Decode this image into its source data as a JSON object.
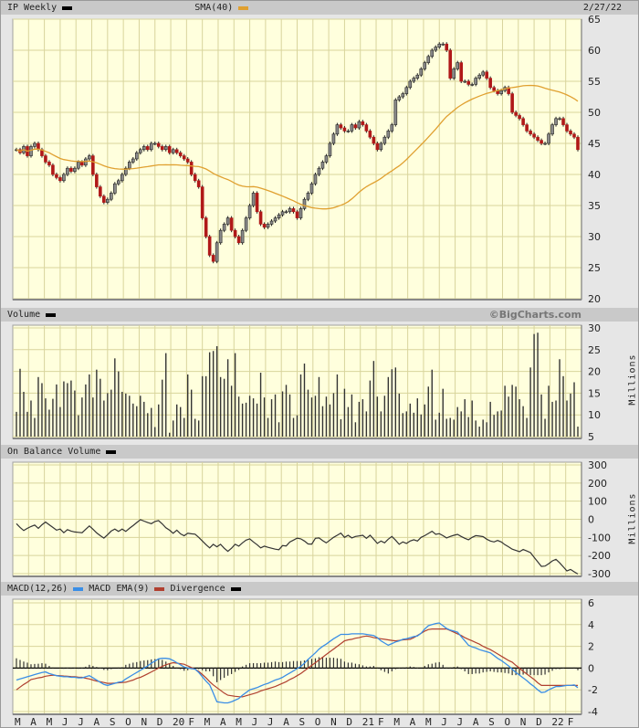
{
  "header": {
    "symbol_label": "IP Weekly",
    "sma_label": "SMA(40)",
    "date": "2/27/22",
    "symbol_color": "#000000",
    "sma_color": "#e0a030"
  },
  "volume_header": {
    "label": "Volume",
    "copyright": "©BigCharts.com",
    "units": "Millions"
  },
  "obv_header": {
    "label": "On Balance Volume",
    "units": "Millions"
  },
  "macd_header": {
    "macd_label": "MACD(12,26)",
    "ema_label": "MACD EMA(9)",
    "div_label": "Divergence",
    "macd_color": "#3a8ee6",
    "ema_color": "#b04030",
    "div_color": "#000000"
  },
  "chart_data": [
    {
      "type": "candlestick",
      "title": "IP Weekly",
      "x_tick_labels": [
        "M",
        "A",
        "M",
        "J",
        "J",
        "A",
        "S",
        "O",
        "N",
        "D",
        "20",
        "F",
        "M",
        "A",
        "M",
        "J",
        "J",
        "A",
        "S",
        "O",
        "N",
        "D",
        "21",
        "F",
        "M",
        "A",
        "M",
        "J",
        "J",
        "A",
        "S",
        "O",
        "N",
        "D",
        "22",
        "F"
      ],
      "y_ticks": [
        "65",
        "60",
        "55",
        "50",
        "45",
        "40",
        "35",
        "30",
        "25",
        "20"
      ],
      "ylim": [
        20,
        65
      ],
      "grid": true,
      "up_color": "#8a8a8a",
      "down_color": "#b01818",
      "sma_period": 40,
      "closes": [
        44,
        43.5,
        44.5,
        43,
        44.5,
        45,
        44,
        43,
        42,
        41.5,
        40,
        39.5,
        39,
        40,
        41,
        40.5,
        41,
        42,
        41.5,
        42.5,
        43,
        40,
        38,
        36.5,
        35.5,
        36,
        37,
        38.5,
        39,
        40,
        41,
        42,
        42.5,
        43.5,
        44,
        44.5,
        44,
        45,
        45,
        44.5,
        44,
        44.5,
        43.5,
        44,
        43.5,
        43,
        42.5,
        42,
        40,
        39,
        38,
        33,
        30,
        27,
        26,
        29,
        31,
        32,
        33,
        31,
        30,
        29,
        31,
        33,
        35,
        37,
        34,
        32,
        31.5,
        32,
        32.5,
        33,
        33.5,
        34,
        34,
        34.5,
        34,
        33,
        34.5,
        36,
        37,
        38.5,
        40,
        41,
        42,
        43,
        45,
        46.5,
        48,
        47.5,
        47,
        47,
        48,
        47.5,
        48.5,
        48,
        47,
        46,
        45,
        44,
        45,
        46,
        47,
        48,
        52,
        52.5,
        53,
        54,
        55,
        55.5,
        56,
        57,
        58,
        59,
        60,
        60.5,
        61,
        61,
        60,
        55.5,
        57,
        58,
        55,
        55,
        54.5,
        54.5,
        55.5,
        56,
        56.5,
        55.5,
        54,
        53.5,
        53,
        53.5,
        54,
        53,
        50,
        49.5,
        49,
        48,
        47,
        46.5,
        46,
        45.5,
        45,
        45,
        46.5,
        48,
        49,
        49,
        48,
        47,
        46.5,
        46,
        44
      ]
    },
    {
      "type": "bar",
      "title": "Volume",
      "units": "Millions",
      "y_ticks": [
        "30",
        "25",
        "20",
        "15",
        "10",
        "5"
      ],
      "ylim": [
        5,
        30
      ],
      "values": [
        10.7,
        20.6,
        15.3,
        10.7,
        13.3,
        9.3,
        18.7,
        17.3,
        13.8,
        11.2,
        13.7,
        17,
        11.8,
        17.7,
        17.3,
        17.9,
        15.6,
        9.9,
        14,
        17,
        19.3,
        14,
        20.4,
        18.3,
        13.3,
        15,
        15.8,
        23,
        20,
        15.3,
        14.9,
        14.4,
        12.6,
        12,
        14.4,
        13,
        10.4,
        11.6,
        7.2,
        12.4,
        18.1,
        24.2,
        5.9,
        8.7,
        12.4,
        11.8,
        9.3,
        19.3,
        15.8,
        9.1,
        8.7,
        18.9,
        18.9,
        24.4,
        24.7,
        25.8,
        18.7,
        18.3,
        22.8,
        16.7,
        24.2,
        14.2,
        12.6,
        12.8,
        14.4,
        13.8,
        12.6,
        19.7,
        14,
        9.3,
        13.6,
        14.7,
        8.3,
        15.4,
        16.9,
        14.7,
        9.3,
        9.9,
        19.3,
        21.8,
        15.8,
        14,
        14.4,
        18.7,
        12,
        14.2,
        12.4,
        15,
        19.3,
        9,
        16,
        11.8,
        14.7,
        8.3,
        13,
        13.6,
        10.8,
        17.9,
        22.4,
        14.2,
        10.8,
        14.4,
        18.7,
        20.5,
        20.9,
        14.9,
        10.4,
        10.8,
        12.6,
        10.5,
        13.8,
        10.1,
        12.4,
        16.5,
        20.4,
        8.9,
        10.5,
        16,
        9.1,
        9.3,
        8.9,
        11.8,
        10.8,
        13.6,
        9.5,
        13.3,
        8.7,
        7.3,
        8.9,
        8.3,
        13,
        10,
        10.8,
        11,
        16.7,
        14.2,
        16.9,
        16.5,
        13.6,
        12,
        9.3,
        20.9,
        28.6,
        28.9,
        14.7,
        9.1,
        16.7,
        13,
        13.3,
        22.8,
        18.9,
        13.3,
        14.9,
        17.5,
        7.3
      ]
    },
    {
      "type": "line",
      "title": "On Balance Volume",
      "units": "Millions",
      "y_ticks": [
        "300",
        "200",
        "100",
        "0",
        "-100",
        "-200",
        "-300"
      ],
      "ylim": [
        -300,
        300
      ],
      "values": [
        -24,
        -45,
        -62,
        -50,
        -40,
        -32,
        -50,
        -30,
        -15,
        -30,
        -45,
        -60,
        -54,
        -74,
        -57,
        -65,
        -70,
        -72,
        -74,
        -55,
        -37,
        -55,
        -75,
        -90,
        -104,
        -85,
        -65,
        -54,
        -67,
        -54,
        -67,
        -50,
        -35,
        -18,
        -2,
        -10,
        -18,
        -24,
        -12,
        -7,
        -25,
        -47,
        -60,
        -77,
        -60,
        -80,
        -91,
        -77,
        -80,
        -82,
        -100,
        -120,
        -140,
        -158,
        -138,
        -152,
        -138,
        -160,
        -177,
        -160,
        -138,
        -148,
        -130,
        -115,
        -108,
        -125,
        -140,
        -158,
        -148,
        -155,
        -160,
        -165,
        -168,
        -145,
        -147,
        -125,
        -115,
        -104,
        -108,
        -120,
        -136,
        -137,
        -105,
        -103,
        -118,
        -130,
        -115,
        -100,
        -88,
        -76,
        -100,
        -88,
        -103,
        -95,
        -92,
        -88,
        -105,
        -88,
        -110,
        -133,
        -120,
        -130,
        -110,
        -95,
        -115,
        -138,
        -125,
        -133,
        -120,
        -113,
        -120,
        -100,
        -90,
        -78,
        -66,
        -83,
        -79,
        -90,
        -103,
        -95,
        -88,
        -83,
        -95,
        -105,
        -113,
        -100,
        -90,
        -93,
        -96,
        -110,
        -120,
        -125,
        -117,
        -125,
        -140,
        -152,
        -165,
        -172,
        -179,
        -167,
        -175,
        -184,
        -210,
        -235,
        -260,
        -258,
        -245,
        -230,
        -221,
        -240,
        -262,
        -285,
        -277,
        -290,
        -302
      ]
    },
    {
      "type": "line",
      "title": "MACD(12,26)",
      "y_ticks": [
        "6",
        "4",
        "2",
        "0",
        "-2",
        "-4"
      ],
      "ylim": [
        -4,
        6
      ],
      "series": [
        {
          "name": "MACD(12,26)",
          "values": [
            -1.1,
            -1.0,
            -0.9,
            -0.8,
            -0.7,
            -0.6,
            -0.5,
            -0.4,
            -0.35,
            -0.5,
            -0.6,
            -0.7,
            -0.75,
            -0.8,
            -0.8,
            -0.85,
            -0.85,
            -0.9,
            -0.9,
            -0.8,
            -0.7,
            -0.9,
            -1.1,
            -1.3,
            -1.5,
            -1.6,
            -1.5,
            -1.4,
            -1.3,
            -1.25,
            -1.0,
            -0.8,
            -0.6,
            -0.4,
            -0.2,
            0.0,
            0.2,
            0.45,
            0.65,
            0.85,
            0.9,
            0.9,
            0.85,
            0.7,
            0.5,
            0.3,
            0.1,
            0.0,
            -0.05,
            -0.1,
            -0.4,
            -0.8,
            -1.2,
            -1.55,
            -2.3,
            -3.1,
            -3.15,
            -3.2,
            -3.2,
            -3.1,
            -2.95,
            -2.8,
            -2.5,
            -2.25,
            -2.0,
            -1.9,
            -1.8,
            -1.65,
            -1.5,
            -1.4,
            -1.25,
            -1.1,
            -1.0,
            -0.85,
            -0.65,
            -0.45,
            -0.25,
            -0.05,
            0.15,
            0.45,
            0.8,
            1.1,
            1.4,
            1.75,
            2.0,
            2.2,
            2.45,
            2.7,
            2.9,
            3.1,
            3.1,
            3.1,
            3.15,
            3.15,
            3.15,
            3.15,
            3.1,
            3.05,
            3.0,
            2.8,
            2.5,
            2.3,
            2.1,
            2.25,
            2.4,
            2.5,
            2.65,
            2.7,
            2.8,
            2.9,
            2.95,
            3.2,
            3.6,
            3.9,
            4.0,
            4.1,
            4.15,
            3.9,
            3.65,
            3.5,
            3.4,
            3.3,
            2.9,
            2.5,
            2.1,
            1.95,
            1.85,
            1.7,
            1.6,
            1.5,
            1.4,
            1.15,
            0.9,
            0.7,
            0.45,
            0.2,
            -0.1,
            -0.4,
            -0.65,
            -0.9,
            -1.15,
            -1.45,
            -1.7,
            -2.0,
            -2.25,
            -2.2,
            -2.0,
            -1.85,
            -1.7,
            -1.7,
            -1.65,
            -1.6,
            -1.6,
            -1.55,
            -1.8
          ]
        },
        {
          "name": "MACD EMA(9)",
          "values": [
            -2.0,
            -1.75,
            -1.5,
            -1.3,
            -1.05,
            -0.98,
            -0.9,
            -0.85,
            -0.75,
            -0.7,
            -0.65,
            -0.68,
            -0.7,
            -0.73,
            -0.75,
            -0.78,
            -0.8,
            -0.83,
            -0.85,
            -0.93,
            -1.0,
            -1.1,
            -1.2,
            -1.25,
            -1.33,
            -1.4,
            -1.4,
            -1.38,
            -1.35,
            -1.33,
            -1.3,
            -1.2,
            -1.1,
            -0.95,
            -0.85,
            -0.7,
            -0.53,
            -0.35,
            -0.18,
            0.0,
            0.15,
            0.3,
            0.4,
            0.5,
            0.45,
            0.4,
            0.35,
            0.2,
            0.05,
            -0.1,
            -0.3,
            -0.6,
            -0.9,
            -1.25,
            -1.55,
            -1.8,
            -2.05,
            -2.3,
            -2.5,
            -2.55,
            -2.6,
            -2.63,
            -2.65,
            -2.55,
            -2.45,
            -2.35,
            -2.25,
            -2.1,
            -2.0,
            -1.9,
            -1.8,
            -1.7,
            -1.55,
            -1.4,
            -1.25,
            -1.05,
            -0.9,
            -0.7,
            -0.5,
            -0.25,
            0.0,
            0.25,
            0.5,
            0.75,
            1.0,
            1.25,
            1.5,
            1.75,
            2.0,
            2.25,
            2.5,
            2.6,
            2.65,
            2.75,
            2.8,
            2.9,
            2.95,
            2.9,
            2.8,
            2.75,
            2.7,
            2.65,
            2.6,
            2.55,
            2.5,
            2.55,
            2.6,
            2.62,
            2.65,
            2.8,
            3.0,
            3.2,
            3.4,
            3.55,
            3.6,
            3.6,
            3.6,
            3.6,
            3.6,
            3.45,
            3.3,
            3.15,
            3.0,
            2.8,
            2.65,
            2.5,
            2.35,
            2.2,
            2.0,
            1.85,
            1.7,
            1.5,
            1.3,
            1.1,
            0.9,
            0.7,
            0.55,
            0.25,
            0.0,
            -0.3,
            -0.55,
            -0.8,
            -1.05,
            -1.35,
            -1.6,
            -1.6,
            -1.6,
            -1.6,
            -1.6,
            -1.6,
            -1.6,
            -1.6,
            -1.6,
            -1.6,
            -1.6
          ]
        },
        {
          "name": "Divergence",
          "values": "MACD minus MACD EMA(9)"
        }
      ]
    }
  ]
}
